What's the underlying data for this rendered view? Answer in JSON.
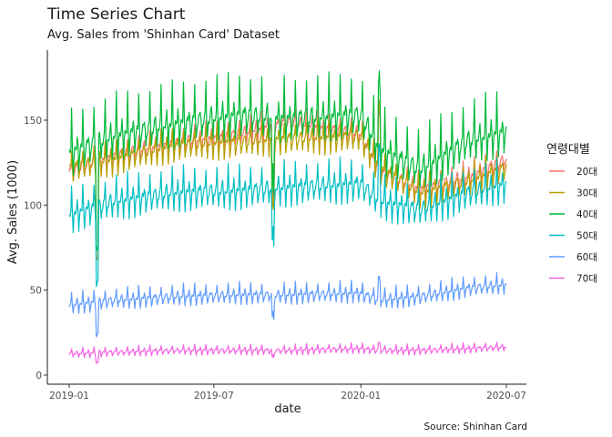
{
  "chart_data": {
    "type": "line",
    "title": "Time Series Chart",
    "subtitle": "Avg. Sales from 'Shinhan Card' Dataset",
    "caption": "Source: Shinhan Card",
    "xlabel": "date",
    "ylabel": "Avg. Sales (1000)",
    "x_range": [
      "2019-01-01",
      "2020-07-01"
    ],
    "ylim": [
      0,
      185
    ],
    "x_ticks": [
      "2019-01",
      "2019-07",
      "2020-01",
      "2020-07"
    ],
    "y_ticks": [
      0,
      50,
      100,
      150
    ],
    "legend": {
      "title": "연령대별",
      "position": "right"
    },
    "grid": false,
    "series": [
      {
        "name": "20대",
        "color": "#F8766D",
        "anchors": [
          [
            "2019-01-01",
            118
          ],
          [
            "2019-03-01",
            128
          ],
          [
            "2019-05-15",
            135
          ],
          [
            "2019-08-01",
            140
          ],
          [
            "2019-10-01",
            147
          ],
          [
            "2019-12-31",
            140
          ],
          [
            "2020-01-25",
            118
          ],
          [
            "2020-03-15",
            108
          ],
          [
            "2020-05-15",
            115
          ],
          [
            "2020-06-30",
            125
          ]
        ],
        "amplitude": 6,
        "peaks": 8
      },
      {
        "name": "30대",
        "color": "#B79F00",
        "anchors": [
          [
            "2019-01-01",
            120
          ],
          [
            "2019-03-01",
            125
          ],
          [
            "2019-05-15",
            133
          ],
          [
            "2019-08-01",
            135
          ],
          [
            "2019-10-01",
            137
          ],
          [
            "2019-12-31",
            138
          ],
          [
            "2020-01-25",
            120
          ],
          [
            "2020-03-15",
            105
          ],
          [
            "2020-05-15",
            112
          ],
          [
            "2020-06-30",
            120
          ]
        ],
        "amplitude": 7,
        "peaks": 8
      },
      {
        "name": "40대",
        "color": "#00BA38",
        "anchors": [
          [
            "2019-01-01",
            128
          ],
          [
            "2019-03-01",
            138
          ],
          [
            "2019-05-15",
            145
          ],
          [
            "2019-08-01",
            150
          ],
          [
            "2019-10-01",
            148
          ],
          [
            "2019-12-31",
            150
          ],
          [
            "2020-01-25",
            130
          ],
          [
            "2020-03-15",
            118
          ],
          [
            "2020-05-15",
            135
          ],
          [
            "2020-06-30",
            140
          ]
        ],
        "amplitude": 10,
        "peaks": 28
      },
      {
        "name": "50대",
        "color": "#00BFC4",
        "anchors": [
          [
            "2019-01-01",
            92
          ],
          [
            "2019-03-01",
            100
          ],
          [
            "2019-05-15",
            105
          ],
          [
            "2019-08-01",
            106
          ],
          [
            "2019-10-01",
            108
          ],
          [
            "2019-12-31",
            110
          ],
          [
            "2020-01-25",
            100
          ],
          [
            "2020-03-15",
            95
          ],
          [
            "2020-05-15",
            105
          ],
          [
            "2020-06-30",
            110
          ]
        ],
        "amplitude": 8,
        "peaks": 15
      },
      {
        "name": "60대",
        "color": "#619CFF",
        "anchors": [
          [
            "2019-01-01",
            40
          ],
          [
            "2019-03-01",
            43
          ],
          [
            "2019-05-15",
            45
          ],
          [
            "2019-08-01",
            46
          ],
          [
            "2019-10-01",
            46
          ],
          [
            "2019-12-31",
            47
          ],
          [
            "2020-01-25",
            43
          ],
          [
            "2020-03-15",
            45
          ],
          [
            "2020-05-15",
            50
          ],
          [
            "2020-06-30",
            52
          ]
        ],
        "amplitude": 4,
        "peaks": 7
      },
      {
        "name": "70대",
        "color": "#F564E3",
        "anchors": [
          [
            "2019-01-01",
            12
          ],
          [
            "2019-03-01",
            13
          ],
          [
            "2019-05-15",
            14
          ],
          [
            "2019-08-01",
            14
          ],
          [
            "2019-10-01",
            14
          ],
          [
            "2019-12-31",
            15
          ],
          [
            "2020-01-25",
            14
          ],
          [
            "2020-03-15",
            14
          ],
          [
            "2020-05-15",
            15
          ],
          [
            "2020-06-30",
            16
          ]
        ],
        "amplitude": 2,
        "peaks": 3
      }
    ]
  }
}
